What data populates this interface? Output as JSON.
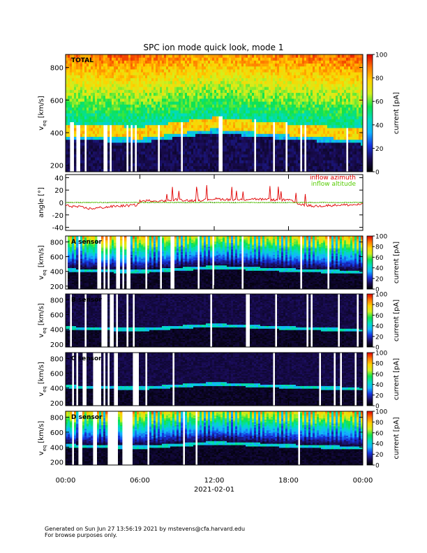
{
  "title": "SPC ion mode quick look, mode 1",
  "footer": {
    "line1": "Generated on Sun Jun 27 13:56:19 2021 by mstevens@cfa.harvard.edu",
    "line2": "For browse purposes only."
  },
  "x_axis": {
    "tick_labels": [
      "00:00",
      "06:00",
      "12:00",
      "18:00",
      "00:00"
    ],
    "tick_hours": [
      0,
      6,
      12,
      18,
      24
    ],
    "date_label": "2021-02-01"
  },
  "colorbar": {
    "label": "current [pA]",
    "ticks": [
      "0",
      "20",
      "40",
      "60",
      "80",
      "100"
    ],
    "range": [
      0,
      100
    ],
    "colormap": [
      "#000000",
      "#1a0c56",
      "#1633e0",
      "#13b4ff",
      "#00dcc0",
      "#10e34a",
      "#d2f01e",
      "#ffd200",
      "#ff7800",
      "#e00000"
    ]
  },
  "chart_data": [
    {
      "type": "heatmap",
      "panel": "total",
      "label": "TOTAL",
      "ylabel": "v_eq [km/s]",
      "ylabel_main": "v",
      "ylabel_sub": "eq",
      "ylabel_unit": "[km/s]",
      "yticks": [
        "200",
        "400",
        "600",
        "800"
      ],
      "ylim": [
        160,
        880
      ],
      "xlim": [
        0,
        24
      ],
      "colorbar_range": [
        0,
        100
      ],
      "beam_core_speed": {
        "hours": [
          0,
          6,
          12,
          18,
          24
        ],
        "values": [
          420,
          400,
          460,
          420,
          390
        ]
      }
    },
    {
      "type": "line",
      "panel": "angle",
      "ylabel": "angle [°]",
      "yticks": [
        "-40",
        "-20",
        "0",
        "20",
        "40"
      ],
      "ylim": [
        -45,
        45
      ],
      "xlim": [
        0,
        24
      ],
      "series": [
        {
          "name": "inflow azimuth",
          "color": "#e00000",
          "x": [
            0,
            1,
            2,
            3,
            4,
            5,
            5.8,
            6,
            7,
            8,
            9,
            10,
            11,
            12,
            13,
            14,
            15,
            16,
            17,
            18,
            19,
            20,
            21,
            22,
            23,
            24
          ],
          "y": [
            -5,
            -7,
            -10,
            -8,
            -6,
            -5,
            -4,
            2,
            3,
            2,
            5,
            3,
            4,
            6,
            5,
            4,
            6,
            5,
            4,
            4,
            -3,
            -6,
            -5,
            -4,
            -4,
            -3
          ]
        },
        {
          "name": "inflow altitude",
          "color": "#55cc00",
          "x": [
            0,
            3,
            6,
            9,
            12,
            15,
            18,
            21,
            24
          ],
          "y": [
            0,
            0,
            0,
            0,
            0,
            0,
            0,
            0,
            0
          ]
        }
      ]
    },
    {
      "type": "heatmap",
      "panel": "sensor-a",
      "label": "A sensor",
      "ylabel": "v_eq [km/s]",
      "ylabel_main": "v",
      "ylabel_sub": "eq",
      "ylabel_unit": "[km/s]",
      "yticks": [
        "200",
        "400",
        "600",
        "800"
      ],
      "ylim": [
        160,
        880
      ],
      "colorbar_range": [
        0,
        100
      ]
    },
    {
      "type": "heatmap",
      "panel": "sensor-b",
      "label": "B sensor",
      "ylabel": "v_eq [km/s]",
      "ylabel_main": "v",
      "ylabel_sub": "eq",
      "ylabel_unit": "[km/s]",
      "yticks": [
        "200",
        "400",
        "600",
        "800"
      ],
      "ylim": [
        160,
        880
      ],
      "colorbar_range": [
        0,
        100
      ]
    },
    {
      "type": "heatmap",
      "panel": "sensor-c",
      "label": "C sensor",
      "ylabel": "v_eq [km/s]",
      "ylabel_main": "v",
      "ylabel_sub": "eq",
      "ylabel_unit": "[km/s]",
      "yticks": [
        "200",
        "400",
        "600",
        "800"
      ],
      "ylim": [
        160,
        880
      ],
      "colorbar_range": [
        0,
        100
      ]
    },
    {
      "type": "heatmap",
      "panel": "sensor-d",
      "label": "D sensor",
      "ylabel": "v_eq [km/s]",
      "ylabel_main": "v",
      "ylabel_sub": "eq",
      "ylabel_unit": "[km/s]",
      "yticks": [
        "200",
        "400",
        "600",
        "800"
      ],
      "ylim": [
        160,
        880
      ],
      "colorbar_range": [
        0,
        100
      ]
    }
  ]
}
